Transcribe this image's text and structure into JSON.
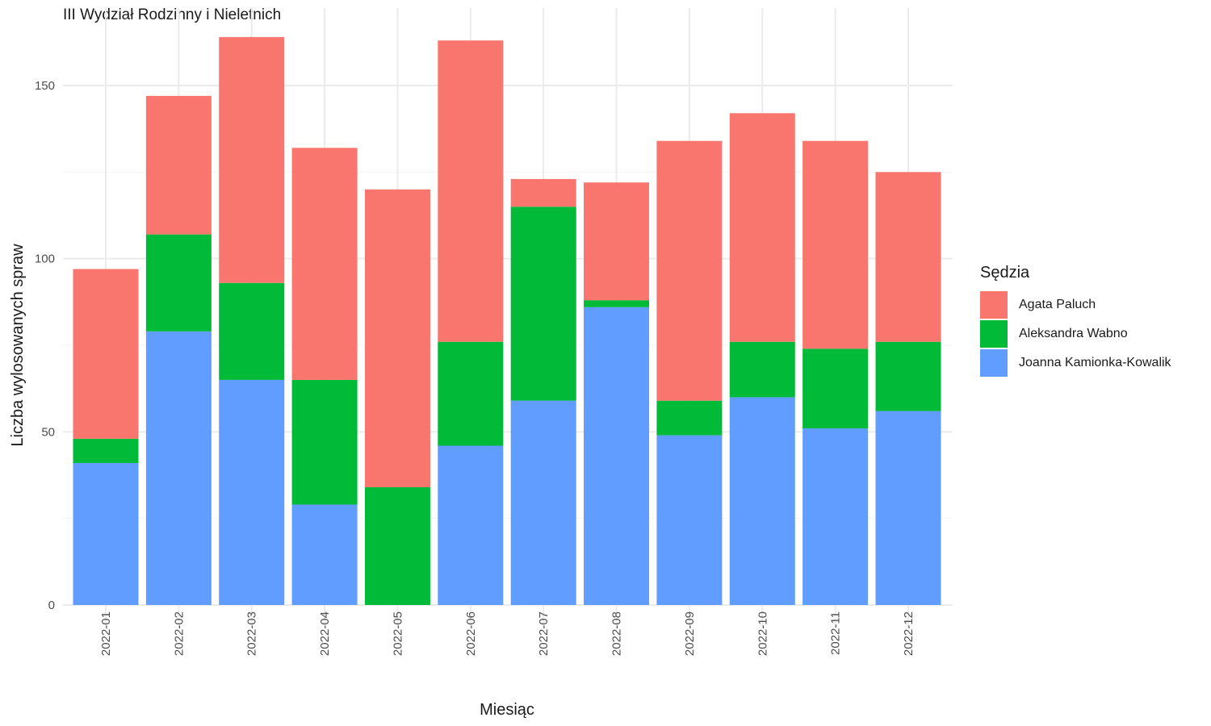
{
  "chart_data": {
    "type": "bar",
    "stacked": true,
    "title": "III Wydział Rodzinny i Nieletnich",
    "xlabel": "Miesiąc",
    "ylabel": "Liczba wylosowanych spraw",
    "ylim": [
      0,
      170
    ],
    "yticks": [
      0,
      50,
      100,
      150
    ],
    "grid": true,
    "legend_position": "right",
    "legend_title": "Sędzia",
    "categories": [
      "2022-01",
      "2022-02",
      "2022-03",
      "2022-04",
      "2022-05",
      "2022-06",
      "2022-07",
      "2022-08",
      "2022-09",
      "2022-10",
      "2022-11",
      "2022-12"
    ],
    "series": [
      {
        "name": "Joanna Kamionka-Kowalik",
        "color": "#619CFF",
        "values": [
          41,
          79,
          65,
          29,
          0,
          46,
          59,
          86,
          49,
          60,
          51,
          56
        ]
      },
      {
        "name": "Aleksandra Wabno",
        "color": "#00BA38",
        "values": [
          7,
          28,
          28,
          36,
          34,
          30,
          56,
          2,
          10,
          16,
          23,
          20
        ]
      },
      {
        "name": "Agata Paluch",
        "color": "#F8766D",
        "values": [
          49,
          40,
          71,
          67,
          86,
          87,
          8,
          34,
          75,
          66,
          60,
          49
        ]
      }
    ],
    "legend_order": [
      "Agata Paluch",
      "Aleksandra Wabno",
      "Joanna Kamionka-Kowalik"
    ]
  }
}
